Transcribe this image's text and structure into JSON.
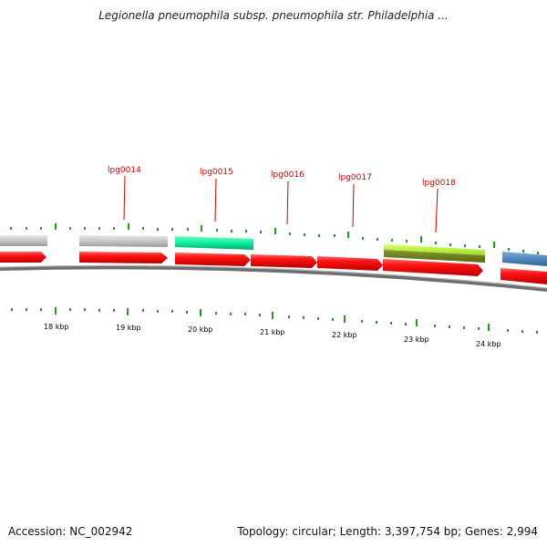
{
  "title": "Legionella pneumophila subsp. pneumophila str. Philadelphia ...",
  "footer": {
    "accession": "Accession: NC_002942",
    "summary": "Topology: circular; Length: 3,397,754 bp; Genes: 2,994"
  },
  "colors": {
    "gene_red": "#ee0000",
    "gray_feature": "#c8c8c8",
    "teal_feature": "#22eeaa",
    "green_feature": "#aaee33",
    "olive_feature": "#667722",
    "blue_feature": "#4488bb",
    "tick_green": "#229922",
    "backbone": "#888888"
  },
  "scale_ticks": [
    {
      "kbp": 18,
      "label": "18 kbp"
    },
    {
      "kbp": 19,
      "label": "19 kbp"
    },
    {
      "kbp": 20,
      "label": "20 kbp"
    },
    {
      "kbp": 21,
      "label": "21 kbp"
    },
    {
      "kbp": 22,
      "label": "22 kbp"
    },
    {
      "kbp": 23,
      "label": "23 kbp"
    },
    {
      "kbp": 24,
      "label": "24 kbp"
    }
  ],
  "gene_labels": [
    {
      "id": "lpg0014",
      "label": "lpg0014"
    },
    {
      "id": "lpg0015",
      "label": "lpg0015"
    },
    {
      "id": "lpg0016",
      "label": "lpg0016"
    },
    {
      "id": "lpg0017",
      "label": "lpg0017"
    },
    {
      "id": "lpg0018",
      "label": "lpg0018"
    }
  ]
}
